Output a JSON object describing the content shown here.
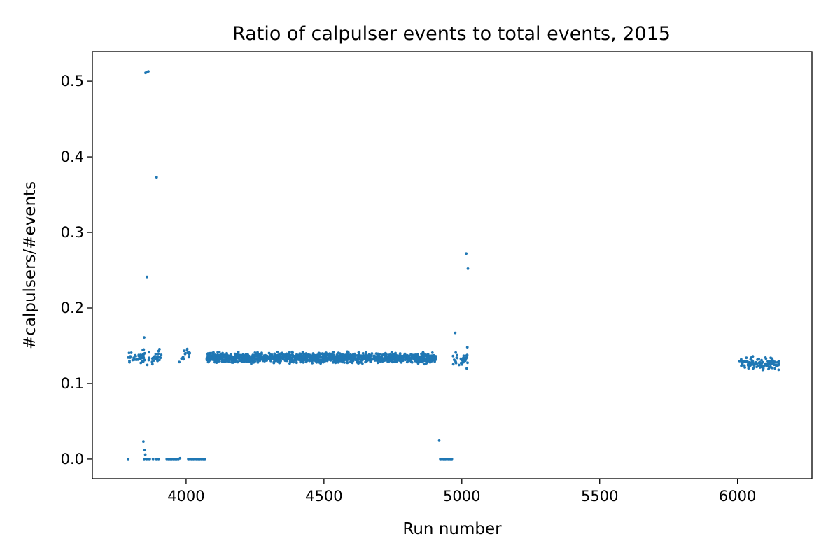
{
  "chart_data": {
    "type": "scatter",
    "title": "Ratio of calpulser events to total events, 2015",
    "xlabel": "Run number",
    "ylabel": "#calpulsers/#events",
    "xlim": [
      3660,
      6270
    ],
    "ylim": [
      -0.026,
      0.539
    ],
    "xticks": [
      4000,
      4500,
      5000,
      5500,
      6000
    ],
    "yticks": [
      0.0,
      0.1,
      0.2,
      0.3,
      0.4,
      0.5
    ],
    "xtick_labels": [
      "4000",
      "4500",
      "5000",
      "5500",
      "6000"
    ],
    "ytick_labels": [
      "0.0",
      "0.1",
      "0.2",
      "0.3",
      "0.4",
      "0.5"
    ],
    "grid": false,
    "legend": "none",
    "color": "#1f77b4",
    "series": [
      {
        "points": [
          [
            3790,
            0.0
          ],
          [
            3845,
            0.023
          ],
          [
            3850,
            0.012
          ],
          [
            3852,
            0.006
          ],
          [
            3848,
            0.0
          ],
          [
            3856,
            0.0
          ],
          [
            3862,
            0.0
          ],
          [
            3868,
            0.0
          ],
          [
            3880,
            0.0
          ],
          [
            3892,
            0.0
          ],
          [
            3900,
            0.0
          ],
          [
            3930,
            0.0
          ],
          [
            3936,
            0.0
          ],
          [
            3942,
            0.0
          ],
          [
            3948,
            0.0
          ],
          [
            3954,
            0.0
          ],
          [
            3960,
            0.0
          ],
          [
            3966,
            0.0
          ],
          [
            3972,
            0.0
          ],
          [
            3978,
            0.001
          ],
          [
            4008,
            0.0
          ],
          [
            4014,
            0.0
          ],
          [
            4020,
            0.0
          ],
          [
            4026,
            0.0
          ],
          [
            4032,
            0.0
          ],
          [
            4038,
            0.0
          ],
          [
            4044,
            0.0
          ],
          [
            4050,
            0.0
          ],
          [
            4056,
            0.0
          ],
          [
            4062,
            0.0
          ],
          [
            4068,
            0.0
          ],
          [
            4918,
            0.025
          ],
          [
            4922,
            0.0
          ],
          [
            4928,
            0.0
          ],
          [
            4934,
            0.0
          ],
          [
            4940,
            0.0
          ],
          [
            4946,
            0.0
          ],
          [
            4952,
            0.0
          ],
          [
            4958,
            0.0
          ],
          [
            4964,
            0.0
          ],
          [
            3853,
            0.511
          ],
          [
            3858,
            0.512
          ],
          [
            3863,
            0.513
          ],
          [
            3893,
            0.373
          ],
          [
            3858,
            0.241
          ],
          [
            3848,
            0.161
          ],
          [
            3846,
            0.145
          ],
          [
            3850,
            0.14
          ],
          [
            5016,
            0.272
          ],
          [
            5022,
            0.252
          ],
          [
            4976,
            0.167
          ],
          [
            5020,
            0.148
          ],
          [
            4978,
            0.141
          ],
          [
            5018,
            0.12
          ]
        ]
      }
    ]
  }
}
